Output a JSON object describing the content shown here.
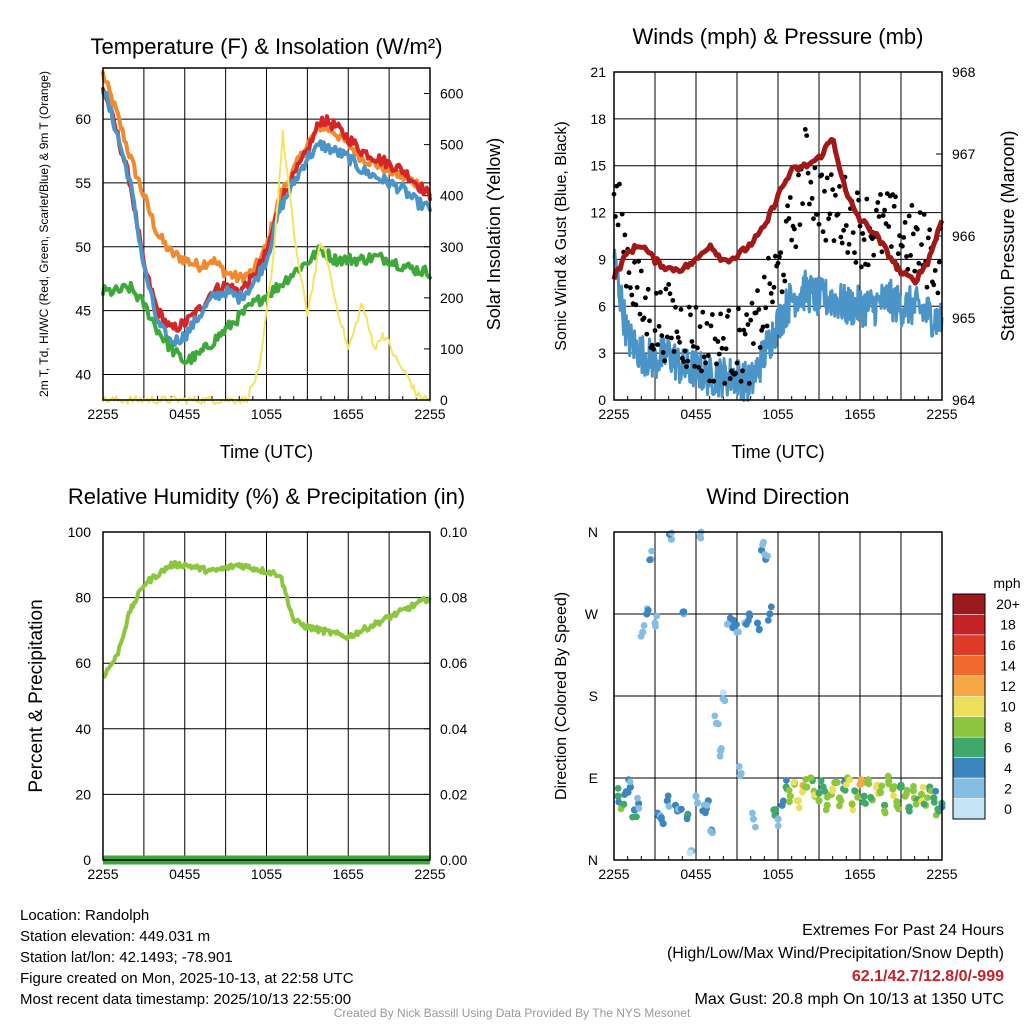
{
  "chart_data": [
    {
      "type": "line",
      "title": "Temperature (F) & Insolation (W/m²)",
      "xlabel": "Time (UTC)",
      "ylabel_left": "2m T, Td, HI/WC (Red, Green, Scarlet/Blue) & 9m T (Orange)",
      "ylabel_right": "Solar Insolation (Yellow)",
      "x_ticks": [
        "2255",
        "0455",
        "1055",
        "1655",
        "2255"
      ],
      "x_range_hours": [
        0,
        24
      ],
      "ylim": [
        38,
        64
      ],
      "y_ticks": [
        40,
        45,
        50,
        55,
        60
      ],
      "y2lim": [
        0,
        650
      ],
      "y2_ticks": [
        0,
        100,
        200,
        300,
        400,
        500,
        600
      ],
      "series": [
        {
          "name": "9m T",
          "color": "#f08a30",
          "x": [
            0,
            1,
            2,
            3,
            4,
            5,
            6,
            7,
            8,
            9,
            10,
            11,
            12,
            13,
            14,
            15,
            16,
            17,
            18,
            19,
            20,
            21,
            22,
            23,
            24
          ],
          "values": [
            63.5,
            60.5,
            57,
            54,
            51,
            49.5,
            49,
            48.5,
            49,
            48,
            47.5,
            48,
            50,
            54,
            56,
            58,
            59.5,
            59,
            58,
            57,
            56.5,
            56,
            55.5,
            55,
            54
          ]
        },
        {
          "name": "2m T",
          "color": "#d42626",
          "x": [
            0,
            1,
            2,
            3,
            4,
            5,
            6,
            7,
            8,
            9,
            10,
            11,
            12,
            13,
            14,
            15,
            16,
            17,
            18,
            19,
            20,
            21,
            22,
            23,
            24
          ],
          "values": [
            62.5,
            59,
            55,
            48.5,
            45,
            43.5,
            44,
            45,
            46.5,
            47,
            46.5,
            47.5,
            49.5,
            53.5,
            55.5,
            57.5,
            60,
            59.5,
            58.5,
            57.5,
            57,
            56.5,
            56,
            55,
            54
          ]
        },
        {
          "name": "HI/WC",
          "color": "#4a94c8",
          "x": [
            0,
            1,
            2,
            3,
            4,
            5,
            6,
            7,
            8,
            9,
            10,
            11,
            12,
            13,
            14,
            15,
            16,
            17,
            18,
            19,
            20,
            21,
            22,
            23,
            24
          ],
          "values": [
            62.5,
            59,
            55,
            48.5,
            44,
            42.5,
            43,
            44.5,
            46,
            46.5,
            46,
            47,
            49,
            53,
            55,
            57,
            58,
            57.5,
            57,
            56,
            55.5,
            55,
            54.5,
            53.5,
            53
          ]
        },
        {
          "name": "2m Td",
          "color": "#3fa83a",
          "x": [
            0,
            1,
            2,
            3,
            4,
            5,
            6,
            7,
            8,
            9,
            10,
            11,
            12,
            13,
            14,
            15,
            16,
            17,
            18,
            19,
            20,
            21,
            22,
            23,
            24
          ],
          "values": [
            46.5,
            46.5,
            46.8,
            45.5,
            43.5,
            42,
            41,
            41.5,
            42.5,
            43.5,
            44.5,
            45.5,
            46.2,
            47,
            48,
            48.8,
            49.8,
            49,
            49,
            49,
            49.2,
            49,
            48.5,
            48.2,
            48
          ]
        },
        {
          "name": "Solar Insolation",
          "color": "#f4e460",
          "axis": "right",
          "x": [
            0,
            10.5,
            11.5,
            12.5,
            13.2,
            14,
            14.5,
            15,
            15.5,
            16,
            16.5,
            17,
            17.5,
            18,
            18.5,
            19,
            19.5,
            20,
            20.5,
            21,
            21.5,
            22,
            22.5,
            23,
            24
          ],
          "values": [
            0,
            0,
            60,
            280,
            520,
            330,
            240,
            170,
            240,
            310,
            270,
            200,
            150,
            100,
            140,
            190,
            140,
            100,
            130,
            110,
            80,
            60,
            40,
            10,
            0
          ]
        }
      ]
    },
    {
      "type": "line",
      "title": "Winds (mph) & Pressure (mb)",
      "xlabel": "Time (UTC)",
      "ylabel_left": "Sonic Wind & Gust (Blue, Black)",
      "ylabel_right": "Station Pressure (Maroon)",
      "x_ticks": [
        "2255",
        "0455",
        "1055",
        "1655",
        "2255"
      ],
      "x_range_hours": [
        0,
        24
      ],
      "ylim": [
        0,
        21
      ],
      "y_ticks": [
        0,
        3,
        6,
        9,
        12,
        15,
        18,
        21
      ],
      "y2lim": [
        964,
        968
      ],
      "y2_ticks": [
        964,
        965,
        966,
        967,
        968
      ],
      "series": [
        {
          "name": "Sonic Wind",
          "color": "#4a94c8",
          "x": [
            0,
            1,
            2,
            3,
            4,
            5,
            6,
            7,
            8,
            9,
            10,
            11,
            12,
            13,
            14,
            15,
            16,
            17,
            18,
            19,
            20,
            21,
            22,
            23,
            24
          ],
          "values": [
            9,
            4,
            3,
            2.5,
            3,
            2,
            2,
            1.5,
            1.5,
            1.5,
            1,
            3,
            5,
            6.5,
            7,
            6.5,
            6.5,
            6,
            6,
            6,
            6.5,
            6,
            6,
            5.5,
            5
          ]
        },
        {
          "name": "Gust",
          "color": "#000000",
          "x": [
            0,
            1,
            2,
            3,
            4,
            5,
            6,
            7,
            8,
            9,
            10,
            11,
            12,
            13,
            14,
            15,
            16,
            17,
            18,
            19,
            20,
            21,
            22,
            23,
            24
          ],
          "values": [
            13,
            9,
            6,
            5,
            5,
            4.5,
            4,
            3.5,
            3.5,
            3.5,
            3.5,
            6,
            8,
            11,
            15,
            13,
            12,
            12,
            11,
            11,
            11,
            10.5,
            10,
            9.5,
            9
          ]
        },
        {
          "name": "Station Pressure",
          "color": "#a01818",
          "axis": "right",
          "x": [
            0,
            1,
            2,
            3,
            4,
            5,
            6,
            7,
            8,
            9,
            10,
            11,
            12,
            13,
            14,
            15,
            16,
            17,
            18,
            19,
            20,
            21,
            22,
            23,
            24
          ],
          "values": [
            965.5,
            965.8,
            965.9,
            965.7,
            965.6,
            965.6,
            965.7,
            965.9,
            965.7,
            965.75,
            965.9,
            966.1,
            966.5,
            966.8,
            966.85,
            966.95,
            967.2,
            966.5,
            966.2,
            966.05,
            965.8,
            965.55,
            965.45,
            965.7,
            966.2
          ]
        }
      ]
    },
    {
      "type": "line",
      "title": "Relative Humidity (%) & Precipitation (in)",
      "xlabel": "",
      "ylabel_left": "Percent & Precipitation",
      "x_ticks": [
        "2255",
        "0455",
        "1055",
        "1655",
        "2255"
      ],
      "x_range_hours": [
        0,
        24
      ],
      "ylim": [
        0,
        100
      ],
      "y_ticks": [
        0,
        20,
        40,
        60,
        80,
        100
      ],
      "y2lim": [
        0,
        0.1
      ],
      "y2_ticks": [
        "0.00",
        "0.02",
        "0.04",
        "0.06",
        "0.08",
        "0.10"
      ],
      "series": [
        {
          "name": "Relative Humidity",
          "color": "#8cc63e",
          "x": [
            0,
            1,
            2,
            3,
            4,
            5,
            6,
            7,
            8,
            9,
            10,
            11,
            12,
            13,
            14,
            15,
            16,
            17,
            18,
            19,
            20,
            21,
            22,
            23,
            24
          ],
          "values": [
            56,
            62,
            76,
            84,
            87,
            90,
            90,
            89,
            88,
            89,
            90,
            89,
            88,
            87,
            73,
            71,
            70,
            69,
            68,
            70,
            72,
            74,
            76,
            78,
            80
          ]
        },
        {
          "name": "Precipitation",
          "color": "#3fa83a",
          "axis": "right",
          "x": [
            0,
            24
          ],
          "values": [
            0,
            0
          ]
        }
      ]
    },
    {
      "type": "scatter",
      "title": "Wind Direction",
      "xlabel": "",
      "ylabel_left": "Direction (Colored By Speed)",
      "x_ticks": [
        "2255",
        "0455",
        "1055",
        "1655",
        "2255"
      ],
      "x_range_hours": [
        0,
        24
      ],
      "ylim": [
        0,
        360
      ],
      "y_tick_labels": [
        "N",
        "E",
        "S",
        "W",
        "N"
      ],
      "colorbar_title": "mph",
      "colorbar_labels": [
        "20+",
        "18",
        "16",
        "14",
        "12",
        "10",
        "8",
        "6",
        "4",
        "2",
        "0"
      ],
      "colorbar_colors": [
        "#9c1a1f",
        "#c42226",
        "#e03a2a",
        "#ef6a2c",
        "#f5a845",
        "#ece05a",
        "#8cc63e",
        "#3fa86a",
        "#3d85bf",
        "#86bde3",
        "#c4e4f6"
      ],
      "points": [
        {
          "x": 0.3,
          "dir": 70,
          "spd": 5
        },
        {
          "x": 0.6,
          "dir": 60,
          "spd": 6
        },
        {
          "x": 0.9,
          "dir": 75,
          "spd": 4
        },
        {
          "x": 1.2,
          "dir": 80,
          "spd": 3
        },
        {
          "x": 1.5,
          "dir": 55,
          "spd": 4
        },
        {
          "x": 1.8,
          "dir": 62,
          "spd": 3
        },
        {
          "x": 2.1,
          "dir": 250,
          "spd": 2
        },
        {
          "x": 2.4,
          "dir": 270,
          "spd": 3
        },
        {
          "x": 2.7,
          "dir": 330,
          "spd": 2
        },
        {
          "x": 3.0,
          "dir": 260,
          "spd": 2
        },
        {
          "x": 3.3,
          "dir": 48,
          "spd": 3
        },
        {
          "x": 3.6,
          "dir": 40,
          "spd": 4
        },
        {
          "x": 3.9,
          "dir": 65,
          "spd": 3
        },
        {
          "x": 4.2,
          "dir": 352,
          "spd": 2
        },
        {
          "x": 4.5,
          "dir": 60,
          "spd": 4
        },
        {
          "x": 4.8,
          "dir": 55,
          "spd": 3
        },
        {
          "x": 5.1,
          "dir": 270,
          "spd": 2
        },
        {
          "x": 5.4,
          "dir": 50,
          "spd": 4
        },
        {
          "x": 5.7,
          "dir": 10,
          "spd": 1
        },
        {
          "x": 6.0,
          "dir": 70,
          "spd": 2
        },
        {
          "x": 6.3,
          "dir": 355,
          "spd": 1
        },
        {
          "x": 6.6,
          "dir": 60,
          "spd": 2
        },
        {
          "x": 6.9,
          "dir": 65,
          "spd": 3
        },
        {
          "x": 7.2,
          "dir": 30,
          "spd": 2
        },
        {
          "x": 7.5,
          "dir": 150,
          "spd": 1
        },
        {
          "x": 7.8,
          "dir": 120,
          "spd": 2
        },
        {
          "x": 8.1,
          "dir": 175,
          "spd": 1
        },
        {
          "x": 8.4,
          "dir": 260,
          "spd": 2
        },
        {
          "x": 8.7,
          "dir": 255,
          "spd": 3
        },
        {
          "x": 9.0,
          "dir": 250,
          "spd": 2
        },
        {
          "x": 9.3,
          "dir": 95,
          "spd": 2
        },
        {
          "x": 9.6,
          "dir": 260,
          "spd": 3
        },
        {
          "x": 9.9,
          "dir": 270,
          "spd": 3
        },
        {
          "x": 10.2,
          "dir": 45,
          "spd": 2
        },
        {
          "x": 10.5,
          "dir": 260,
          "spd": 4
        },
        {
          "x": 10.8,
          "dir": 340,
          "spd": 3
        },
        {
          "x": 11.1,
          "dir": 330,
          "spd": 3
        },
        {
          "x": 11.4,
          "dir": 270,
          "spd": 4
        },
        {
          "x": 11.7,
          "dir": 55,
          "spd": 5
        },
        {
          "x": 12.0,
          "dir": 45,
          "spd": 2
        },
        {
          "x": 12.3,
          "dir": 60,
          "spd": 3
        },
        {
          "x": 12.6,
          "dir": 80,
          "spd": 5
        },
        {
          "x": 12.9,
          "dir": 70,
          "spd": 7
        },
        {
          "x": 13.2,
          "dir": 85,
          "spd": 8
        },
        {
          "x": 13.5,
          "dir": 65,
          "spd": 9
        },
        {
          "x": 13.8,
          "dir": 75,
          "spd": 10
        },
        {
          "x": 14.1,
          "dir": 80,
          "spd": 7
        },
        {
          "x": 14.4,
          "dir": 90,
          "spd": 6
        },
        {
          "x": 14.7,
          "dir": 70,
          "spd": 8
        },
        {
          "x": 15.0,
          "dir": 65,
          "spd": 7
        },
        {
          "x": 15.3,
          "dir": 80,
          "spd": 6
        },
        {
          "x": 15.6,
          "dir": 60,
          "spd": 7
        },
        {
          "x": 15.9,
          "dir": 72,
          "spd": 8
        },
        {
          "x": 16.2,
          "dir": 85,
          "spd": 6
        },
        {
          "x": 16.5,
          "dir": 68,
          "spd": 7
        },
        {
          "x": 16.8,
          "dir": 78,
          "spd": 5
        },
        {
          "x": 17.1,
          "dir": 90,
          "spd": 8
        },
        {
          "x": 17.4,
          "dir": 62,
          "spd": 9
        },
        {
          "x": 17.7,
          "dir": 75,
          "spd": 7
        },
        {
          "x": 18.0,
          "dir": 83,
          "spd": 11
        },
        {
          "x": 18.3,
          "dir": 70,
          "spd": 6
        },
        {
          "x": 18.6,
          "dir": 88,
          "spd": 8
        },
        {
          "x": 18.9,
          "dir": 66,
          "spd": 7
        },
        {
          "x": 19.2,
          "dir": 80,
          "spd": 9
        },
        {
          "x": 19.5,
          "dir": 74,
          "spd": 8
        },
        {
          "x": 19.8,
          "dir": 60,
          "spd": 6
        },
        {
          "x": 20.1,
          "dir": 86,
          "spd": 7
        },
        {
          "x": 20.4,
          "dir": 78,
          "spd": 8
        },
        {
          "x": 20.7,
          "dir": 64,
          "spd": 7
        },
        {
          "x": 21.0,
          "dir": 82,
          "spd": 6
        },
        {
          "x": 21.3,
          "dir": 70,
          "spd": 8
        },
        {
          "x": 21.6,
          "dir": 58,
          "spd": 5
        },
        {
          "x": 21.9,
          "dir": 76,
          "spd": 7
        },
        {
          "x": 22.2,
          "dir": 66,
          "spd": 6
        },
        {
          "x": 22.5,
          "dir": 72,
          "spd": 8
        },
        {
          "x": 22.8,
          "dir": 60,
          "spd": 7
        },
        {
          "x": 23.1,
          "dir": 80,
          "spd": 6
        },
        {
          "x": 23.4,
          "dir": 68,
          "spd": 5
        },
        {
          "x": 23.7,
          "dir": 56,
          "spd": 6
        },
        {
          "x": 24.0,
          "dir": 62,
          "spd": 5
        }
      ]
    }
  ],
  "info": {
    "location": "Location: Randolph",
    "elevation": "Station elevation: 449.031 m",
    "latlon": "Station lat/lon: 42.1493; -78.901",
    "created": "Figure created on Mon, 2025-10-13, at 22:58 UTC",
    "recent": "Most recent data timestamp: 2025/10/13 22:55:00"
  },
  "extremes": {
    "title": "Extremes For Past 24 Hours",
    "subtitle": "(High/Low/Max Wind/Precipitation/Snow Depth)",
    "values": "62.1/42.7/12.8/0/-999",
    "values_color": "#c42226",
    "max_gust": "Max Gust: 20.8 mph On 10/13 at 1350 UTC"
  },
  "credit": "Created By Nick Bassill Using Data Provided By The NYS Mesonet"
}
